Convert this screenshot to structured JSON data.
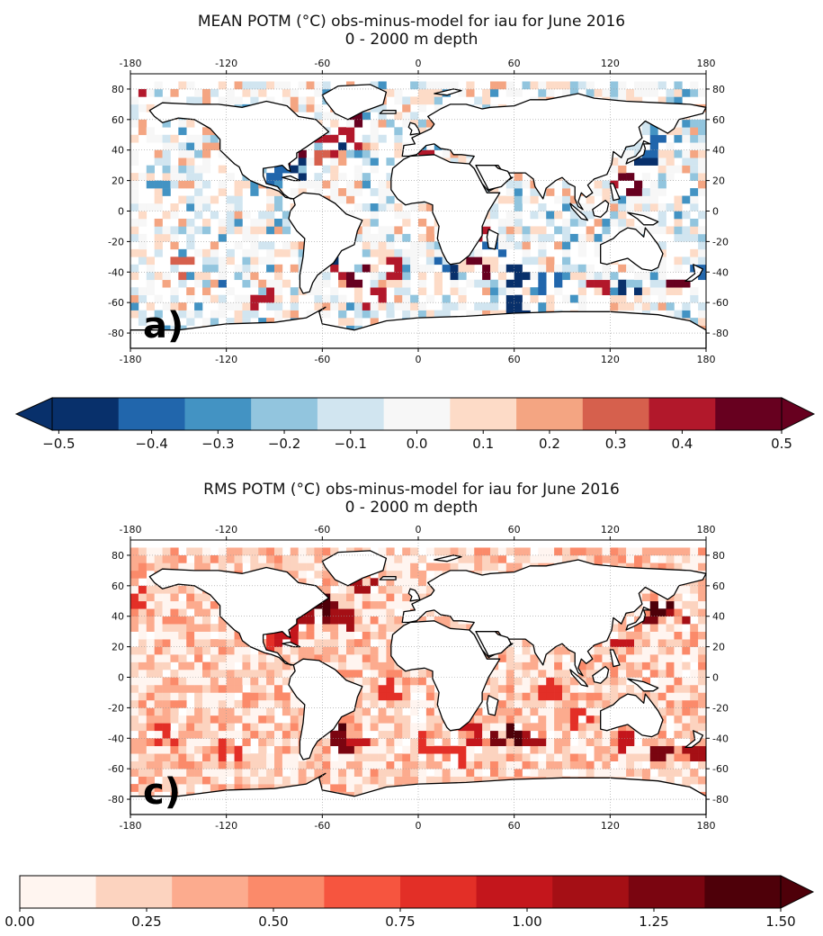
{
  "chart_data": [
    {
      "type": "heatmap",
      "panel_label": "a)",
      "title": "MEAN POTM (°C) obs-minus-model for iau for June 2016",
      "subtitle": "0 - 2000 m depth",
      "xlim": [
        -180,
        180
      ],
      "ylim": [
        -90,
        90
      ],
      "x_ticks": [
        "-180",
        "-120",
        "-60",
        "0",
        "60",
        "120",
        "180"
      ],
      "y_ticks": [
        "80",
        "60",
        "40",
        "20",
        "0",
        "-20",
        "-40",
        "-60",
        "-80"
      ],
      "grid": true,
      "colorbar": {
        "extend": "both",
        "ticks": [
          "−0.5",
          "−0.4",
          "−0.3",
          "−0.2",
          "−0.1",
          "0.0",
          "0.1",
          "0.2",
          "0.3",
          "0.4",
          "0.5"
        ],
        "colors": [
          "#08306b",
          "#2166ac",
          "#4393c3",
          "#92c5de",
          "#d1e5f0",
          "#f7f7f7",
          "#fddbc7",
          "#f4a582",
          "#d6604d",
          "#b2182b",
          "#67001f"
        ]
      }
    },
    {
      "type": "heatmap",
      "panel_label": "c)",
      "title": "RMS POTM (°C) obs-minus-model for iau for June 2016",
      "subtitle": "0 - 2000 m depth",
      "xlim": [
        -180,
        180
      ],
      "ylim": [
        -90,
        90
      ],
      "x_ticks": [
        "-180",
        "-120",
        "-60",
        "0",
        "60",
        "120",
        "180"
      ],
      "y_ticks": [
        "80",
        "60",
        "40",
        "20",
        "0",
        "-20",
        "-40",
        "-60",
        "-80"
      ],
      "grid": true,
      "colorbar": {
        "extend": "max",
        "ticks": [
          "0.00",
          "0.25",
          "0.50",
          "0.75",
          "1.00",
          "1.25",
          "1.50"
        ],
        "colors": [
          "#fff5f0",
          "#fcd3bf",
          "#fcab8e",
          "#fb8a6a",
          "#f6553f",
          "#e32f27",
          "#c4161c",
          "#a50f15",
          "#7a0510",
          "#4e0009"
        ]
      }
    }
  ]
}
